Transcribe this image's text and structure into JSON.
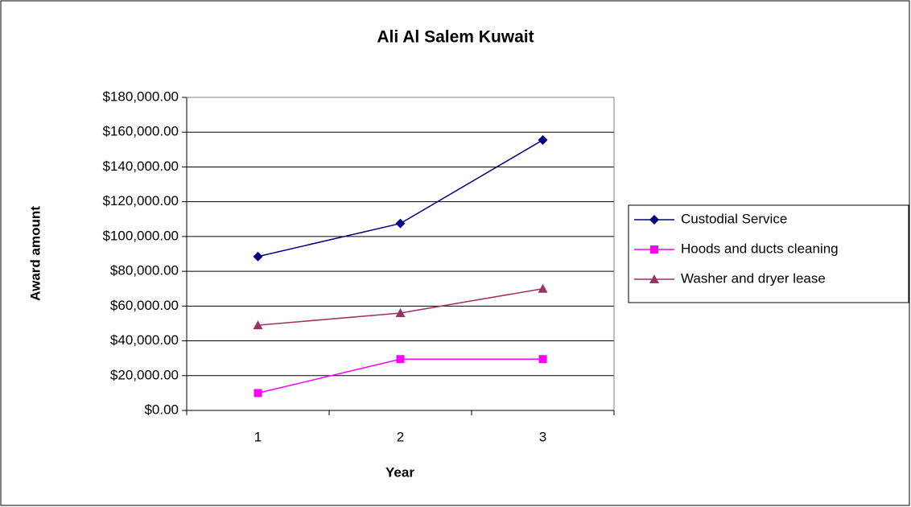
{
  "chart_data": {
    "type": "line",
    "title": "Ali Al Salem Kuwait",
    "x_label": "Year",
    "y_label": "Award amount",
    "categories": [
      "1",
      "2",
      "3"
    ],
    "series": [
      {
        "name": "Custodial Service",
        "color": "#000080",
        "marker": "diamond",
        "values": [
          88500,
          107500,
          155500
        ]
      },
      {
        "name": "Hoods and ducts cleaning",
        "color": "#ff00ff",
        "marker": "square",
        "values": [
          10000,
          29500,
          29500
        ]
      },
      {
        "name": "Washer and dryer lease",
        "color": "#993366",
        "marker": "triangle",
        "values": [
          49000,
          56000,
          70000
        ]
      }
    ],
    "ylim": [
      0,
      180000
    ],
    "yticks": [
      {
        "value": 0,
        "label": "$0.00"
      },
      {
        "value": 20000,
        "label": "$20,000.00"
      },
      {
        "value": 40000,
        "label": "$40,000.00"
      },
      {
        "value": 60000,
        "label": "$60,000.00"
      },
      {
        "value": 80000,
        "label": "$80,000.00"
      },
      {
        "value": 100000,
        "label": "$100,000.00"
      },
      {
        "value": 120000,
        "label": "$120,000.00"
      },
      {
        "value": 140000,
        "label": "$140,000.00"
      },
      {
        "value": 160000,
        "label": "$160,000.00"
      },
      {
        "value": 180000,
        "label": "$180,000.00"
      }
    ],
    "grid": true,
    "legend": "right"
  }
}
